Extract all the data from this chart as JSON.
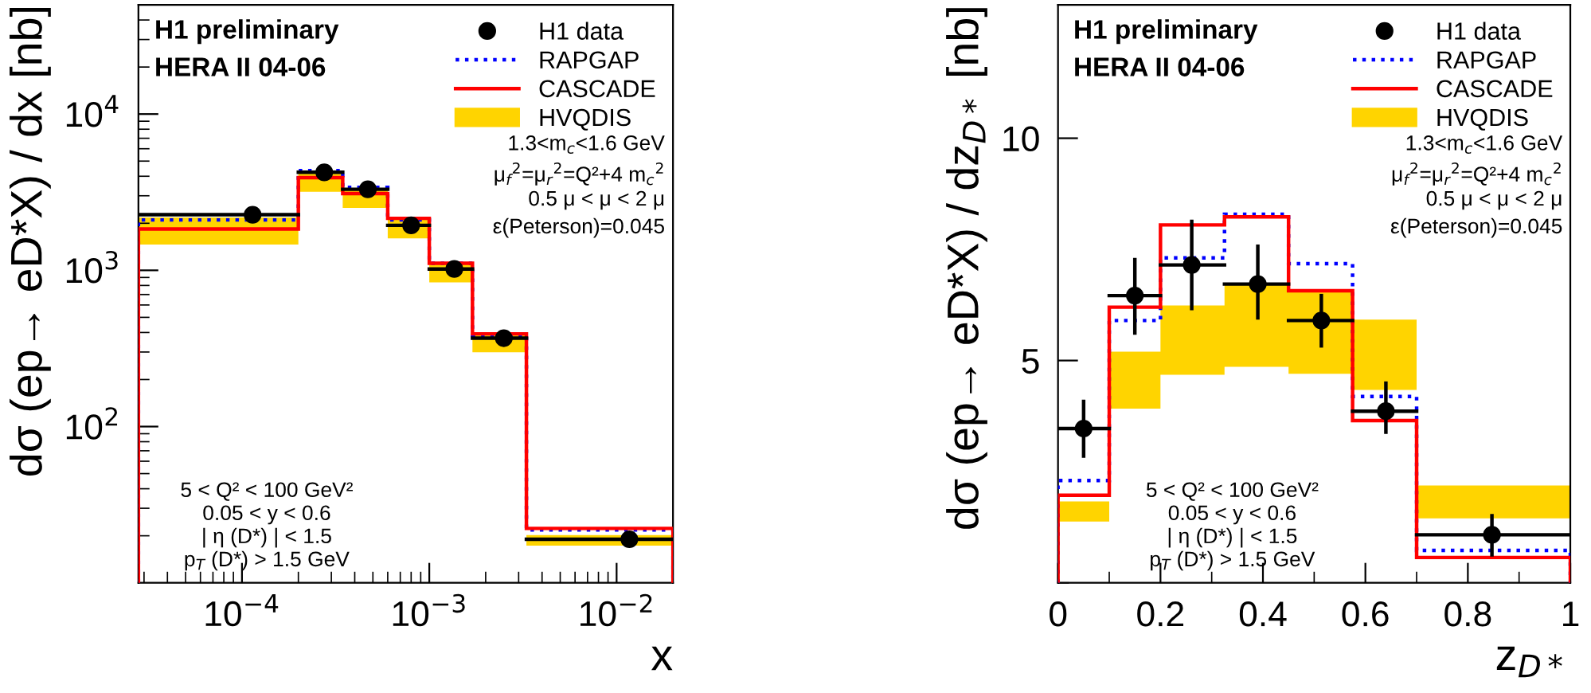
{
  "chart_data": [
    {
      "type": "histogram",
      "title": "H1 preliminary",
      "subtitle": "HERA II 04-06",
      "xlabel": "x",
      "ylabel": "dσ (ep→ eD*X) / dx [nb]",
      "log": "xy",
      "legend": "top right",
      "marker": "circle",
      "xlim": [
        2.8e-05,
        0.02
      ],
      "ylim": [
        10,
        50000
      ],
      "xticks": [
        {
          "value": 0.0001,
          "label": "10$^{−4}$"
        },
        {
          "value": 0.001,
          "label": "10$^{−3}$"
        },
        {
          "value": 0.01,
          "label": "10$^{−2}$"
        }
      ],
      "yticks": [
        {
          "value": 100,
          "label": "10$^{2}$"
        },
        {
          "value": 1000,
          "label": "10$^{3}$"
        },
        {
          "value": 10000,
          "label": "10$^{4}$"
        }
      ],
      "annotations": [
        "1.3<m$_{c}$<1.6 GeV",
        "μ$_{f}$$^{2}$=μ$_{r}$$^{2}$=Q²+4 m$_{c}$$^{2}$",
        "0.5 μ < μ < 2 μ",
        "ε(Peterson)=0.045",
        "5 < Q² < 100 GeV²",
        "0.05 < y < 0.6",
        "| η (D*) | < 1.5",
        "p$_{T}$ (D*) > 1.5 GeV"
      ],
      "series": [
        {
          "name": "H1 data",
          "type": "scatter",
          "color": "#000000",
          "x": [
            0.000114,
            0.000275,
            0.00047,
            0.0008,
            0.00136,
            0.0025,
            0.0117
          ],
          "values": [
            2270,
            4240,
            3300,
            1940,
            1020,
            368,
            19
          ],
          "xerrors": [
            [
              2.8e-05,
              0.0002
            ],
            [
              0.0002,
              0.000345
            ],
            [
              0.000345,
              0.0006
            ],
            [
              0.0006,
              0.001
            ],
            [
              0.001,
              0.0017
            ],
            [
              0.0017,
              0.0033
            ],
            [
              0.0033,
              0.02
            ]
          ]
        },
        {
          "name": "RAPGAP",
          "color": "#0000ff",
          "line_style": "dotted",
          "bins": [
            2.8e-05,
            0.0002,
            0.000345,
            0.0006,
            0.001,
            0.0017,
            0.0033,
            0.02
          ],
          "values": [
            2100,
            4340,
            3400,
            2100,
            1110,
            383,
            21.8
          ]
        },
        {
          "name": "CASCADE",
          "color": "#ff0000",
          "line_style": "solid",
          "bins": [
            2.8e-05,
            0.0002,
            0.000345,
            0.0006,
            0.001,
            0.0017,
            0.0033,
            0.02
          ],
          "values": [
            1840,
            3920,
            3100,
            2150,
            1110,
            392,
            22.3
          ]
        },
        {
          "name": "HVQDIS",
          "type": "area",
          "color": "#ffd400",
          "x": [
            2.8e-05,
            0.0002,
            0.0002,
            0.000345,
            0.000345,
            0.0006,
            0.0006,
            0.001,
            0.001,
            0.0017,
            0.0017,
            0.0033,
            0.0033,
            0.02
          ],
          "values": [
            null,
            null,
            null,
            null,
            null,
            null,
            null,
            null,
            null,
            null,
            null,
            null,
            null,
            null
          ],
          "lower": [
            1460,
            1460,
            3180,
            3180,
            2510,
            2510,
            1600,
            1600,
            836,
            836,
            299,
            299,
            17.3,
            17.3
          ],
          "upper": [
            2180,
            2180,
            4340,
            4340,
            3350,
            3350,
            2180,
            2180,
            1110,
            1110,
            383,
            383,
            20.2,
            20.2
          ]
        }
      ]
    },
    {
      "type": "histogram",
      "title": "H1 preliminary",
      "subtitle": "HERA II 04-06",
      "xlabel": "z$_{D*}$",
      "ylabel": "dσ (ep→ eD*X) / dz$_{D*}$ [nb]",
      "legend": "top right",
      "marker": "circle",
      "xlim": [
        0,
        1
      ],
      "ylim": [
        0,
        13
      ],
      "xticks": [
        0,
        0.2,
        0.4,
        0.6,
        0.8,
        1
      ],
      "yticks": [
        5,
        10
      ],
      "annotations": [
        "1.3<m$_{c}$<1.6 GeV",
        "μ$_{f}$$^{2}$=μ$_{r}$$^{2}$=Q²+4 m$_{c}$$^{2}$",
        "0.5 μ < μ < 2 μ",
        "ε(Peterson)=0.045",
        "5 < Q² < 100 GeV²",
        "0.05 < y < 0.6",
        "| η (D*) | < 1.5",
        "p$_{T}$ (D*) > 1.5 GeV"
      ],
      "series": [
        {
          "name": "H1 data",
          "type": "scatter",
          "color": "#000000",
          "x": [
            0.05,
            0.15,
            0.261,
            0.39,
            0.514,
            0.64,
            0.847
          ],
          "values": [
            3.47,
            6.46,
            7.15,
            6.72,
            5.9,
            3.86,
            1.08
          ],
          "errors": [
            [
              2.85,
              4.08
            ],
            [
              5.62,
              7.27
            ],
            [
              6.17,
              8.13
            ],
            [
              5.96,
              7.57
            ],
            [
              5.33,
              6.46
            ],
            [
              3.39,
              4.49
            ],
            [
              0.63,
              1.51
            ]
          ],
          "xerrors": [
            [
              0,
              0.1
            ],
            [
              0.1,
              0.2
            ],
            [
              0.2,
              0.325
            ],
            [
              0.325,
              0.45
            ],
            [
              0.45,
              0.575
            ],
            [
              0.575,
              0.7
            ],
            [
              0.7,
              1
            ]
          ]
        },
        {
          "name": "RAPGAP",
          "color": "#0000ff",
          "line_style": "dotted",
          "bins": [
            0,
            0.1,
            0.2,
            0.325,
            0.45,
            0.575,
            0.7,
            1
          ],
          "values": [
            2.3,
            5.9,
            7.31,
            8.29,
            7.18,
            4.19,
            0.73
          ]
        },
        {
          "name": "CASCADE",
          "color": "#ff0000",
          "line_style": "solid",
          "bins": [
            0,
            0.1,
            0.2,
            0.325,
            0.45,
            0.575,
            0.7,
            1
          ],
          "values": [
            1.97,
            6.2,
            8.05,
            8.23,
            6.57,
            3.65,
            0.57
          ]
        },
        {
          "name": "HVQDIS",
          "type": "area",
          "color": "#ffd400",
          "x": [
            0,
            0.1,
            0.1,
            0.2,
            0.2,
            0.325,
            0.325,
            0.45,
            0.45,
            0.575,
            0.575,
            0.7,
            0.7,
            1
          ],
          "values": [
            null,
            null,
            null,
            null,
            null,
            null,
            null,
            null,
            null,
            null,
            null,
            null,
            null,
            null
          ],
          "lower": [
            1.38,
            1.38,
            3.92,
            3.92,
            4.68,
            4.68,
            4.86,
            4.86,
            4.7,
            4.7,
            4.34,
            4.34,
            1.45,
            1.45
          ],
          "upper": [
            1.83,
            1.83,
            5.2,
            5.2,
            6.24,
            6.24,
            6.7,
            6.7,
            6.58,
            6.58,
            5.92,
            5.92,
            2.19,
            2.19
          ]
        }
      ]
    }
  ]
}
